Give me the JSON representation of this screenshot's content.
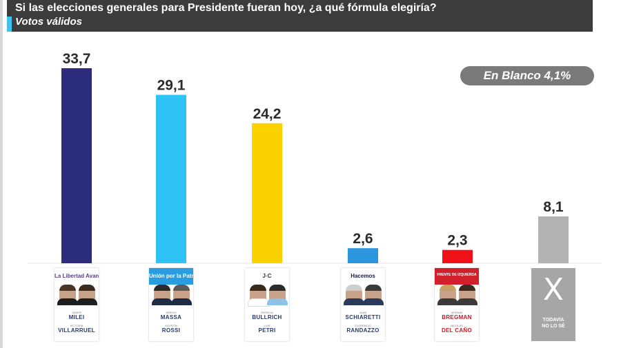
{
  "header": {
    "title": "Si las elecciones generales para Presidente fueran hoy, ¿a qué fórmula elegiría?",
    "subtitle": "Votos válidos"
  },
  "badge": {
    "text": "En Blanco 4,1%"
  },
  "colors": {
    "header_bg": "#3c3c3c",
    "accent": "#3fc2f0",
    "badge_bg": "#7a7a7a"
  },
  "chart_data": {
    "type": "bar",
    "categories": [
      "Milei - Villarruel",
      "Massa - Rossi",
      "Bullrich - Petri",
      "Schiaretti - Randazzo",
      "Bregman - Del Caño",
      "Todavía no lo sé"
    ],
    "values": [
      33.7,
      29.1,
      24.2,
      2.6,
      2.3,
      8.1
    ],
    "value_labels": [
      "33,7",
      "29,1",
      "24,2",
      "2,6",
      "2,3",
      "8,1"
    ],
    "colors": [
      "#2b2c7c",
      "#2ec2f5",
      "#fbd100",
      "#2b96dd",
      "#f0101a",
      "#b3b3b3"
    ],
    "ylim": [
      0,
      35
    ],
    "grid": false,
    "legend": "none"
  },
  "cards": [
    {
      "logo": "La Libertad Avanza",
      "logo_color": "#5b3f8c",
      "top_bg": "#ffffff",
      "first1": "JAVIER",
      "name1": "MILEI",
      "first2": "VICTORIA",
      "name2": "VILLARRUEL"
    },
    {
      "logo": "Unión por la Patria",
      "logo_color": "#ffffff",
      "top_bg": "#2a9de0",
      "first1": "SERGIO",
      "name1": "MASSA",
      "first2": "AGUSTÍN",
      "name2": "ROSSI"
    },
    {
      "logo": "J·C",
      "logo_color": "#333333",
      "top_bg": "#ffffff",
      "first1": "PATRICIA",
      "name1": "BULLRICH",
      "first2": "LUIS",
      "name2": "PETRI"
    },
    {
      "logo": "Hacemos",
      "logo_color": "#1a1a4a",
      "top_bg": "#ffffff",
      "first1": "JUAN",
      "name1": "SCHIARETTI",
      "first2": "FLORENCIO",
      "name2": "RANDAZZO"
    },
    {
      "logo": "FRENTE DE IZQUIERDA",
      "logo_color": "#ffffff",
      "top_bg": "#d11f2b",
      "first1": "MYRIAM",
      "name1": "BREGMAN",
      "first2": "NICOLÁS",
      "name2": "DEL CAÑO"
    }
  ],
  "todavia": {
    "icon": "x-icon",
    "mark": "X",
    "line1": "TODAVÍA",
    "line2": "NO LO SÉ"
  }
}
